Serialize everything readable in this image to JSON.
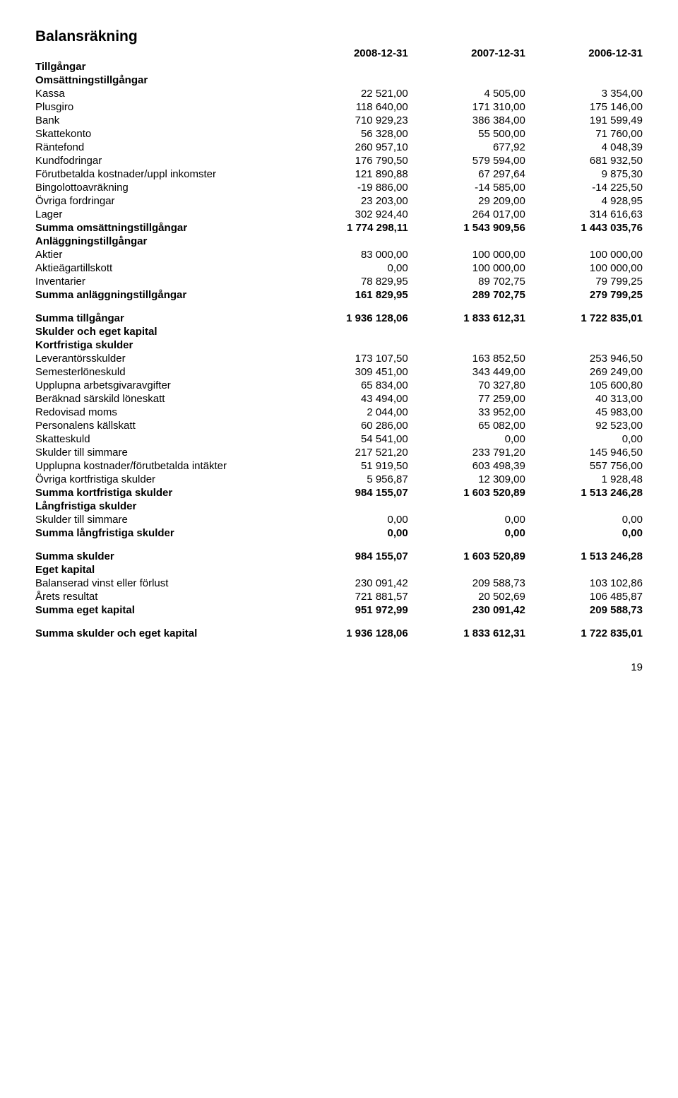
{
  "title": "Balansräkning",
  "col_headers": [
    "2008-12-31",
    "2007-12-31",
    "2006-12-31"
  ],
  "sections": [
    {
      "type": "group_head",
      "label": "Tillgångar"
    },
    {
      "type": "sub_head",
      "label": "Omsättningstillgångar"
    },
    {
      "type": "rows",
      "rows": [
        {
          "label": "Kassa",
          "v": [
            "22 521,00",
            "4 505,00",
            "3 354,00"
          ]
        },
        {
          "label": "Plusgiro",
          "v": [
            "118 640,00",
            "171 310,00",
            "175 146,00"
          ]
        },
        {
          "label": "Bank",
          "v": [
            "710 929,23",
            "386 384,00",
            "191 599,49"
          ]
        },
        {
          "label": "Skattekonto",
          "v": [
            "56 328,00",
            "55 500,00",
            "71 760,00"
          ]
        },
        {
          "label": "Räntefond",
          "v": [
            "260 957,10",
            "677,92",
            "4 048,39"
          ]
        },
        {
          "label": "Kundfodringar",
          "v": [
            "176 790,50",
            "579 594,00",
            "681 932,50"
          ]
        },
        {
          "label": "Förutbetalda kostnader/uppl inkomster",
          "v": [
            "121 890,88",
            "67 297,64",
            "9 875,30"
          ]
        },
        {
          "label": "Bingolottoavräkning",
          "v": [
            "-19 886,00",
            "-14 585,00",
            "-14 225,50"
          ]
        },
        {
          "label": "Övriga fordringar",
          "v": [
            "23 203,00",
            "29 209,00",
            "4 928,95"
          ]
        },
        {
          "label": "Lager",
          "v": [
            "302 924,40",
            "264 017,00",
            "314 616,63"
          ]
        },
        {
          "label": "Summa omsättningstillgångar",
          "v": [
            "1 774 298,11",
            "1 543 909,56",
            "1 443 035,76"
          ],
          "bold": true
        }
      ]
    },
    {
      "type": "sub_head",
      "label": "Anläggningstillgångar"
    },
    {
      "type": "rows",
      "rows": [
        {
          "label": "Aktier",
          "v": [
            "83 000,00",
            "100 000,00",
            "100 000,00"
          ]
        },
        {
          "label": "Aktieägartillskott",
          "v": [
            "0,00",
            "100 000,00",
            "100 000,00"
          ]
        },
        {
          "label": "Inventarier",
          "v": [
            "78 829,95",
            "89 702,75",
            "79 799,25"
          ]
        },
        {
          "label": "Summa anläggningstillgångar",
          "v": [
            "161 829,95",
            "289 702,75",
            "279 799,25"
          ],
          "bold": true
        }
      ]
    },
    {
      "type": "spacer"
    },
    {
      "type": "rows",
      "rows": [
        {
          "label": "Summa tillgångar",
          "v": [
            "1 936 128,06",
            "1 833 612,31",
            "1 722 835,01"
          ],
          "bold": true
        }
      ]
    },
    {
      "type": "group_head",
      "label": "Skulder och eget kapital"
    },
    {
      "type": "sub_head",
      "label": "Kortfristiga skulder"
    },
    {
      "type": "rows",
      "rows": [
        {
          "label": "Leverantörsskulder",
          "v": [
            "173 107,50",
            "163 852,50",
            "253 946,50"
          ]
        },
        {
          "label": "Semesterlöneskuld",
          "v": [
            "309 451,00",
            "343 449,00",
            "269 249,00"
          ]
        },
        {
          "label": "Upplupna arbetsgivaravgifter",
          "v": [
            "65 834,00",
            "70 327,80",
            "105 600,80"
          ]
        },
        {
          "label": "Beräknad särskild löneskatt",
          "v": [
            "43 494,00",
            "77 259,00",
            "40 313,00"
          ]
        },
        {
          "label": "Redovisad moms",
          "v": [
            "2 044,00",
            "33 952,00",
            "45 983,00"
          ]
        },
        {
          "label": "Personalens källskatt",
          "v": [
            "60 286,00",
            "65 082,00",
            "92 523,00"
          ]
        },
        {
          "label": "Skatteskuld",
          "v": [
            "54 541,00",
            "0,00",
            "0,00"
          ]
        },
        {
          "label": "Skulder till simmare",
          "v": [
            "217 521,20",
            "233 791,20",
            "145 946,50"
          ]
        },
        {
          "label": "Upplupna kostnader/förutbetalda intäkter",
          "v": [
            "51 919,50",
            "603 498,39",
            "557 756,00"
          ]
        },
        {
          "label": "Övriga kortfristiga skulder",
          "v": [
            "5 956,87",
            "12 309,00",
            "1 928,48"
          ]
        },
        {
          "label": "Summa kortfristiga skulder",
          "v": [
            "984 155,07",
            "1 603 520,89",
            "1 513 246,28"
          ],
          "bold": true
        }
      ]
    },
    {
      "type": "sub_head",
      "label": "Långfristiga skulder"
    },
    {
      "type": "rows",
      "rows": [
        {
          "label": "Skulder till simmare",
          "v": [
            "0,00",
            "0,00",
            "0,00"
          ]
        },
        {
          "label": "Summa långfristiga skulder",
          "v": [
            "0,00",
            "0,00",
            "0,00"
          ],
          "bold": true
        }
      ]
    },
    {
      "type": "spacer"
    },
    {
      "type": "rows",
      "rows": [
        {
          "label": "Summa skulder",
          "v": [
            "984 155,07",
            "1 603 520,89",
            "1 513 246,28"
          ],
          "bold": true
        }
      ]
    },
    {
      "type": "sub_head",
      "label": "Eget kapital"
    },
    {
      "type": "rows",
      "rows": [
        {
          "label": "Balanserad vinst eller förlust",
          "v": [
            "230 091,42",
            "209 588,73",
            "103 102,86"
          ]
        },
        {
          "label": "Årets resultat",
          "v": [
            "721 881,57",
            "20 502,69",
            "106 485,87"
          ]
        },
        {
          "label": "Summa eget kapital",
          "v": [
            "951 972,99",
            "230 091,42",
            "209 588,73"
          ],
          "bold": true
        }
      ]
    },
    {
      "type": "spacer"
    },
    {
      "type": "rows",
      "rows": [
        {
          "label": "Summa skulder och eget kapital",
          "v": [
            "1 936 128,06",
            "1 833 612,31",
            "1 722 835,01"
          ],
          "bold": true
        }
      ]
    }
  ],
  "page_number": "19"
}
